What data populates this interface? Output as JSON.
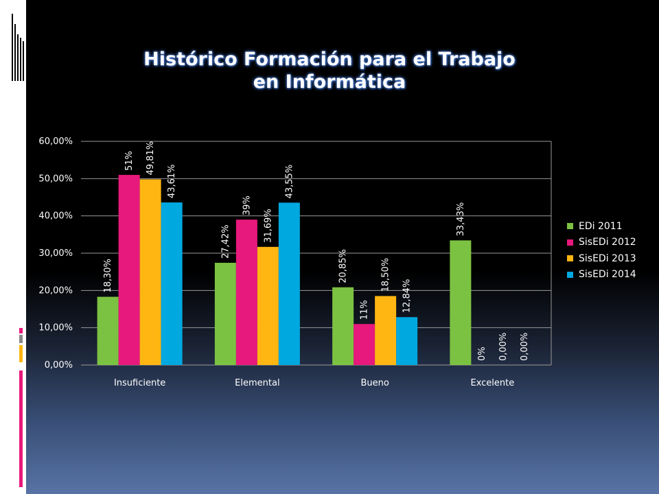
{
  "slide": {
    "title_line1": "Histórico  Formación para el Trabajo",
    "title_line2": "en Informática"
  },
  "colors": {
    "background": "#000000",
    "title_glow": "#4a78c8",
    "accent_pink": "#e8197c",
    "accent_grey": "#888888",
    "accent_gold": "#ffb612"
  },
  "chart_data": {
    "type": "bar",
    "title": "",
    "xlabel": "",
    "ylabel": "",
    "ylim": [
      0,
      60
    ],
    "y_ticks": [
      "0,00%",
      "10,00%",
      "20,00%",
      "30,00%",
      "40,00%",
      "50,00%",
      "60,00%"
    ],
    "grid": true,
    "legend_position": "right",
    "categories": [
      "Insuficiente",
      "Elemental",
      "Bueno",
      "Excelente"
    ],
    "series": [
      {
        "name": "EDi 2011",
        "color": "#7cc242",
        "values": [
          18.3,
          27.42,
          20.85,
          33.43
        ],
        "labels": [
          "18,30%",
          "27,42%",
          "20,85%",
          "33,43%"
        ]
      },
      {
        "name": "SisEDi 2012",
        "color": "#e8197c",
        "values": [
          51,
          39,
          11,
          0
        ],
        "labels": [
          "51%",
          "39%",
          "11%",
          "0%"
        ]
      },
      {
        "name": "SisEDi 2013",
        "color": "#ffb612",
        "values": [
          49.81,
          31.69,
          18.5,
          0
        ],
        "labels": [
          "49,81%",
          "31,69%",
          "18,50%",
          "0,00%"
        ]
      },
      {
        "name": "SisEDi 2014",
        "color": "#00a8e0",
        "values": [
          43.61,
          43.55,
          12.84,
          0
        ],
        "labels": [
          "43,61%",
          "43,55%",
          "12,84%",
          "0,00%"
        ]
      }
    ]
  }
}
